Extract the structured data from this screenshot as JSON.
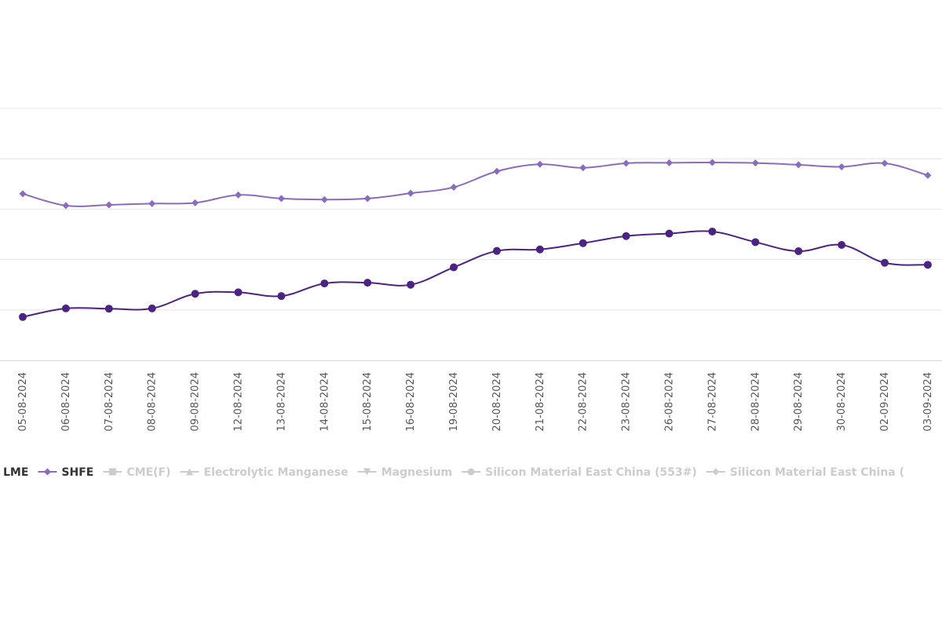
{
  "chart_data": {
    "type": "line",
    "title": "",
    "xlabel": "",
    "ylabel": "",
    "ylim": [
      0,
      100
    ],
    "grid": true,
    "legend_position": "bottom",
    "categories": [
      "05-08-2024",
      "06-08-2024",
      "07-08-2024",
      "08-08-2024",
      "09-08-2024",
      "12-08-2024",
      "13-08-2024",
      "14-08-2024",
      "15-08-2024",
      "16-08-2024",
      "19-08-2024",
      "20-08-2024",
      "21-08-2024",
      "22-08-2024",
      "23-08-2024",
      "26-08-2024",
      "27-08-2024",
      "28-08-2024",
      "29-08-2024",
      "30-08-2024",
      "02-09-2024",
      "03-09-2024"
    ],
    "series": [
      {
        "name": "LME",
        "color": "#4b2483",
        "marker": "circle",
        "values": [
          17.2,
          20.6,
          20.5,
          20.6,
          26.4,
          27.0,
          25.5,
          30.5,
          30.8,
          30.0,
          36.9,
          43.4,
          44.0,
          46.5,
          49.3,
          50.3,
          51.1,
          46.9,
          43.3,
          45.8,
          38.7,
          37.9
        ]
      },
      {
        "name": "SHFE",
        "color": "#8a6cbf",
        "marker": "diamond",
        "values": [
          66.1,
          61.4,
          61.7,
          62.2,
          62.5,
          65.6,
          64.2,
          63.8,
          64.2,
          66.3,
          68.7,
          75.0,
          77.8,
          76.4,
          78.2,
          78.4,
          78.5,
          78.3,
          77.6,
          76.8,
          78.2,
          73.4
        ]
      }
    ],
    "hidden_series": [
      {
        "name": "CME(F)",
        "marker": "square"
      },
      {
        "name": "Electrolytic Manganese",
        "marker": "triangle"
      },
      {
        "name": "Magnesium",
        "marker": "triangle-down"
      },
      {
        "name": "Silicon Material East China (553#)",
        "marker": "circle"
      },
      {
        "name": "Silicon Material East China (",
        "marker": "diamond"
      }
    ],
    "hidden_color": "#cccccc"
  }
}
